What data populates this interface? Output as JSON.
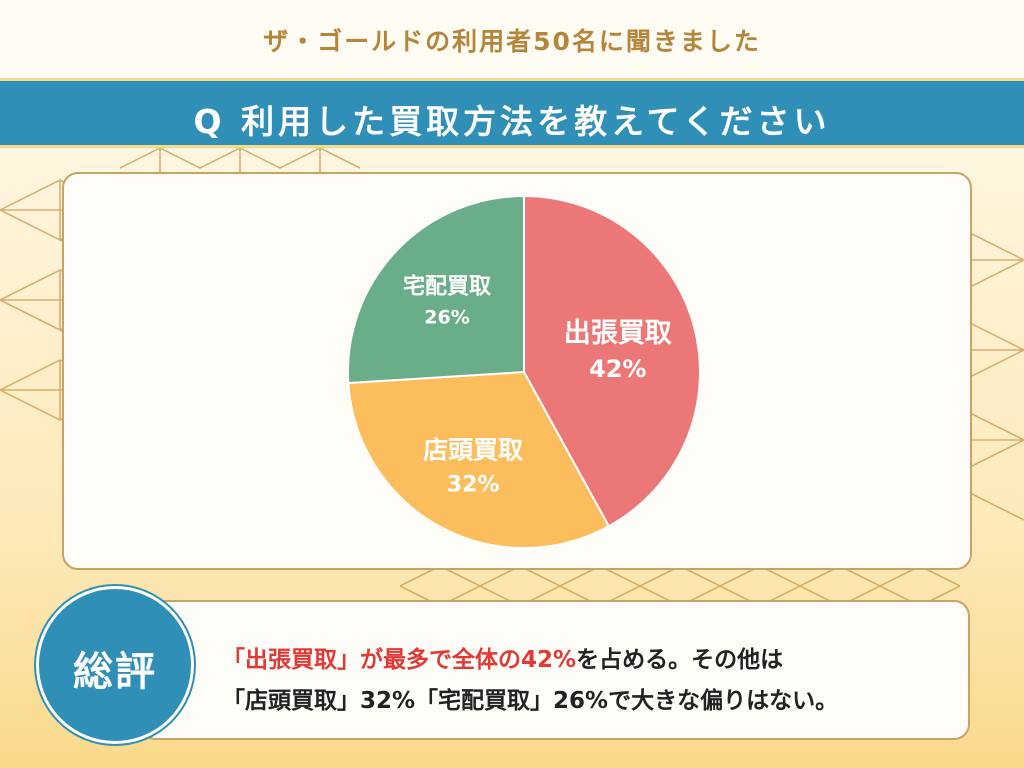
{
  "header": {
    "subtitle": "ザ・ゴールドの利用者50名に聞きました",
    "title": "Q 利用した買取方法を教えてください"
  },
  "colors": {
    "accent_blue": "#2f8fb7",
    "gold": "#b5853a",
    "highlight_red": "#e03a36"
  },
  "chart_data": {
    "type": "pie",
    "title": "",
    "slices": [
      {
        "label": "出張買取",
        "value": 42,
        "display": "42%",
        "color": "#ec7777"
      },
      {
        "label": "店頭買取",
        "value": 32,
        "display": "32%",
        "color": "#fcbd5c"
      },
      {
        "label": "宅配買取",
        "value": 26,
        "display": "26%",
        "color": "#6aad89"
      }
    ]
  },
  "summary": {
    "badge": "総評",
    "line1_highlight": "「出張買取」が最多で全体の42%",
    "line1_rest": "を占める。その他は",
    "line2": "「店頭買取」32%「宅配買取」26%で大きな偏りはない。"
  }
}
